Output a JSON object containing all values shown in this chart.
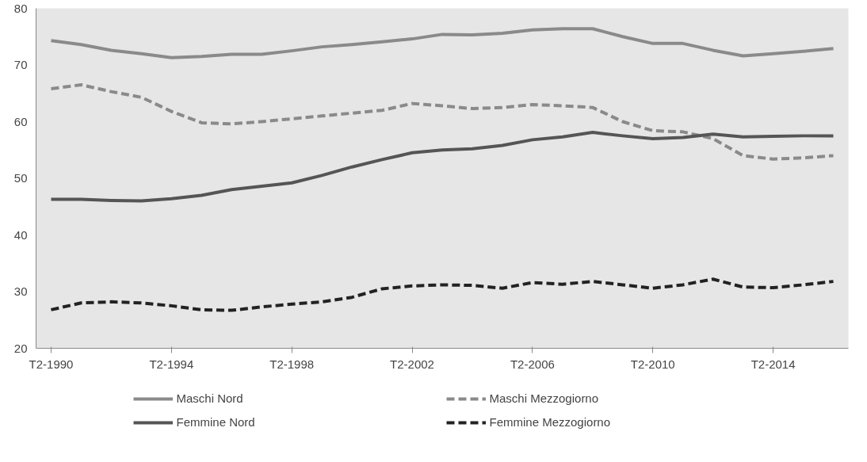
{
  "chart_data": {
    "type": "line",
    "categories": [
      "T2-1990",
      null,
      null,
      null,
      "T2-1994",
      null,
      null,
      null,
      "T2-1998",
      null,
      null,
      null,
      "T2-2002",
      null,
      null,
      null,
      "T2-2006",
      null,
      null,
      null,
      "T2-2010",
      null,
      null,
      null,
      "T2-2014",
      null,
      null
    ],
    "series": [
      {
        "name": "Maschi Nord",
        "color": "#8a8a8a",
        "line_style": "solid",
        "values": [
          74.3,
          73.6,
          72.6,
          72.0,
          71.3,
          71.5,
          71.9,
          71.9,
          72.5,
          73.2,
          73.6,
          74.1,
          74.6,
          75.4,
          75.3,
          75.6,
          76.2,
          76.4,
          76.4,
          75.0,
          73.8,
          73.8,
          72.6,
          71.6,
          72.0,
          72.4,
          72.9
        ]
      },
      {
        "name": "Maschi Mezzogiorno",
        "color": "#8a8a8a",
        "line_style": "dashed",
        "values": [
          65.8,
          66.5,
          65.3,
          64.3,
          61.8,
          59.8,
          59.6,
          60.0,
          60.5,
          61.0,
          61.5,
          62.0,
          63.2,
          62.8,
          62.3,
          62.5,
          63.0,
          62.8,
          62.5,
          60.0,
          58.4,
          58.2,
          57.0,
          54.0,
          53.4,
          53.6,
          54.0
        ]
      },
      {
        "name": "Femmine Nord",
        "color": "#555555",
        "line_style": "solid",
        "values": [
          46.3,
          46.3,
          46.1,
          46.0,
          46.4,
          47.0,
          48.0,
          48.6,
          49.2,
          50.5,
          52.0,
          53.3,
          54.5,
          55.0,
          55.2,
          55.8,
          56.8,
          57.3,
          58.1,
          57.5,
          57.0,
          57.2,
          57.8,
          57.3,
          57.4,
          57.5,
          57.5
        ]
      },
      {
        "name": "Femmine Mezzogiorno",
        "color": "#222222",
        "line_style": "dashed",
        "values": [
          26.8,
          28.0,
          28.2,
          28.0,
          27.5,
          26.8,
          26.7,
          27.3,
          27.8,
          28.2,
          29.0,
          30.5,
          31.0,
          31.2,
          31.1,
          30.6,
          31.6,
          31.3,
          31.8,
          31.2,
          30.6,
          31.2,
          32.2,
          30.8,
          30.7,
          31.2,
          31.8
        ]
      }
    ],
    "ylim": [
      20,
      80
    ],
    "yticks": [
      20,
      30,
      40,
      50,
      60,
      70,
      80
    ],
    "legend": "bottom"
  }
}
